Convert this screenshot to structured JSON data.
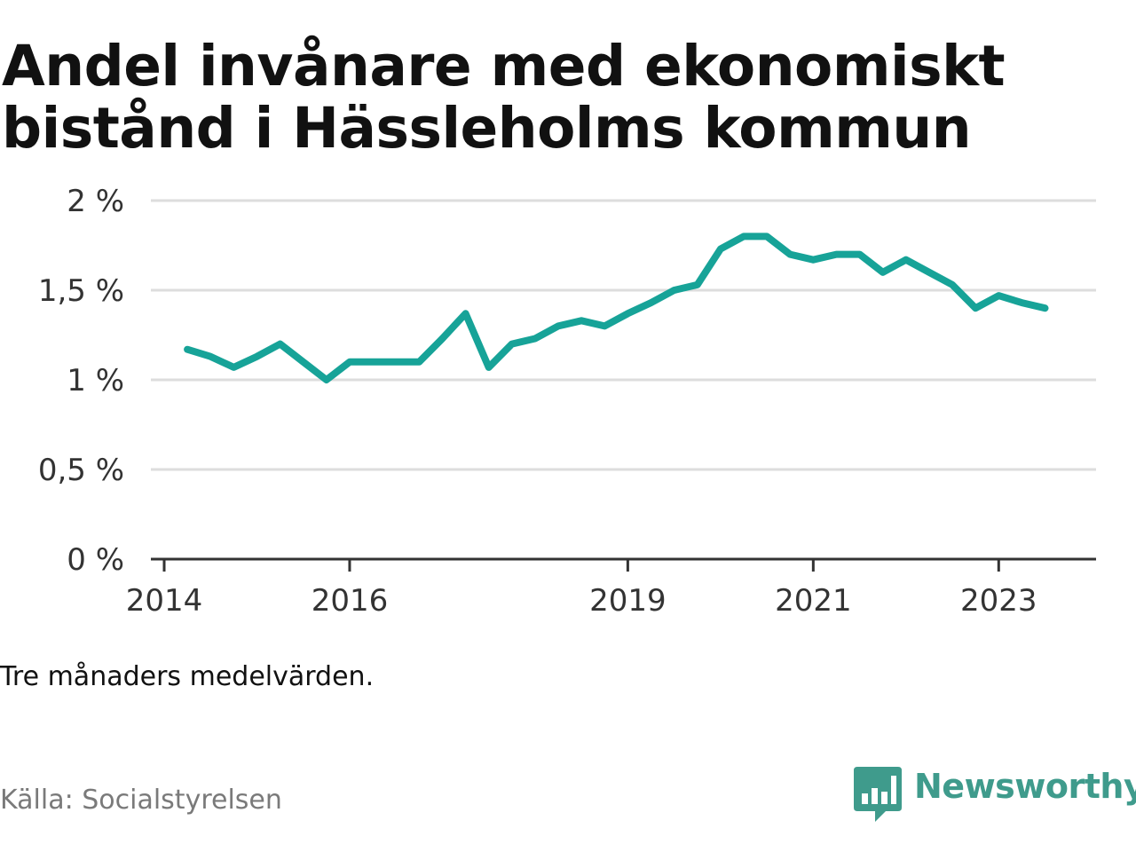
{
  "title": {
    "line1": "Andel invånare med ekonomiskt",
    "line2": "bistånd i Hässleholms kommun"
  },
  "note": "Tre månaders medelvärden.",
  "source": "Källa: Socialstyrelsen",
  "brand": {
    "name": "Newsworthy",
    "icon": "newsworthy-logo-icon",
    "color": "#3f9b8c"
  },
  "colors": {
    "line": "#17a398",
    "grid": "#dddddd",
    "axis": "#333333"
  },
  "chart_data": {
    "type": "line",
    "x_axis": {
      "type": "time",
      "range": [
        2014.0,
        2024.05
      ],
      "ticks": [
        2014,
        2016,
        2019,
        2021,
        2023
      ],
      "tick_labels": [
        "2014",
        "2016",
        "2019",
        "2021",
        "2023"
      ]
    },
    "y_axis": {
      "range": [
        0,
        2
      ],
      "ticks": [
        0,
        0.5,
        1,
        1.5,
        2
      ],
      "tick_labels": [
        "0 %",
        "0,5 %",
        "1 %",
        "1,5 %",
        "2 %"
      ]
    },
    "grid": true,
    "legend": "none",
    "series": [
      {
        "x": [
          2014.25,
          2014.5,
          2014.75,
          2015.0,
          2015.25,
          2015.5,
          2015.75,
          2016.0,
          2016.25,
          2016.5,
          2016.75,
          2017.0,
          2017.25,
          2017.5,
          2017.75,
          2018.0,
          2018.25,
          2018.5,
          2018.75,
          2019.0,
          2019.25,
          2019.5,
          2019.75,
          2020.0,
          2020.25,
          2020.5,
          2020.75,
          2021.0,
          2021.25,
          2021.5,
          2021.75,
          2022.0,
          2022.25,
          2022.5,
          2022.75,
          2023.0,
          2023.25,
          2023.5
        ],
        "y": [
          1.17,
          1.13,
          1.07,
          1.13,
          1.2,
          1.1,
          1.0,
          1.1,
          1.1,
          1.1,
          1.1,
          1.23,
          1.37,
          1.07,
          1.2,
          1.23,
          1.3,
          1.33,
          1.3,
          1.37,
          1.43,
          1.5,
          1.53,
          1.73,
          1.8,
          1.8,
          1.7,
          1.67,
          1.7,
          1.7,
          1.6,
          1.67,
          1.6,
          1.53,
          1.4,
          1.47,
          1.43,
          1.4
        ]
      }
    ]
  }
}
